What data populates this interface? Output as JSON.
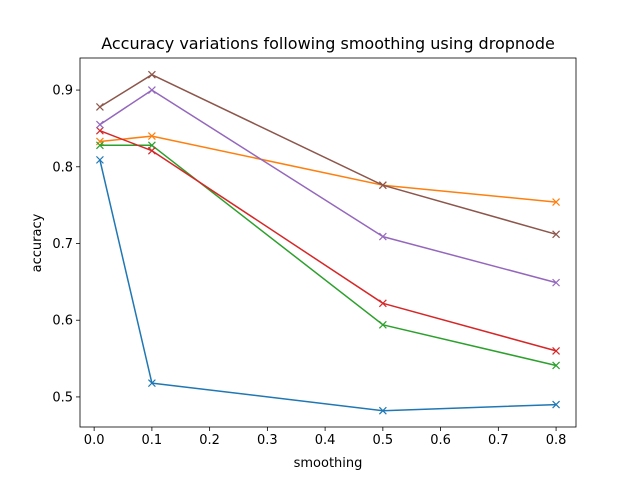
{
  "chart_data": {
    "type": "line",
    "title": "Accuracy variations following smoothing using dropnode",
    "xlabel": "smoothing",
    "ylabel": "accuracy",
    "xlim": [
      -0.0245,
      0.8345
    ],
    "ylim": [
      0.4608,
      0.9418
    ],
    "xticks": [
      "0.0",
      "0.1",
      "0.2",
      "0.3",
      "0.4",
      "0.5",
      "0.6",
      "0.7",
      "0.8"
    ],
    "xtick_values": [
      0.0,
      0.1,
      0.2,
      0.3,
      0.4,
      0.5,
      0.6,
      0.7,
      0.8
    ],
    "yticks": [
      "0.5",
      "0.6",
      "0.7",
      "0.8",
      "0.9"
    ],
    "ytick_values": [
      0.5,
      0.6,
      0.7,
      0.8,
      0.9
    ],
    "grid": false,
    "marker": "x",
    "x": [
      0.01,
      0.1,
      0.5,
      0.8
    ],
    "series": [
      {
        "color": "#1f77b4",
        "values": [
          0.809,
          0.518,
          0.482,
          0.49
        ]
      },
      {
        "color": "#ff7f0e",
        "values": [
          0.833,
          0.84,
          0.776,
          0.754
        ]
      },
      {
        "color": "#2ca02c",
        "values": [
          0.828,
          0.828,
          0.594,
          0.541
        ]
      },
      {
        "color": "#d62728",
        "values": [
          0.847,
          0.821,
          0.622,
          0.56
        ]
      },
      {
        "color": "#9467bd",
        "values": [
          0.855,
          0.9,
          0.709,
          0.649
        ]
      },
      {
        "color": "#8c564b",
        "values": [
          0.878,
          0.92,
          0.776,
          0.712
        ]
      }
    ]
  }
}
